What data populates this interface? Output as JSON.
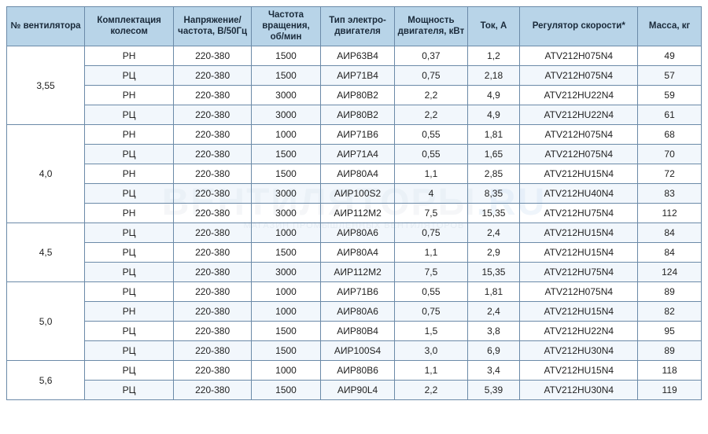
{
  "watermark": {
    "main_prefix": "ВЕНТИЛЯТОРЫ",
    "main_suffix": ".RU",
    "sub": "МАГАЗИН ПРОМЫШЛЕННЫХ ВЕНТИЛЯТОРОВ"
  },
  "colors": {
    "header_bg": "#b8d4e8",
    "border": "#6b8aa8",
    "row_alt": "#e8f1f9",
    "row_base": "#ffffff",
    "text": "#222222"
  },
  "font": {
    "family": "Arial",
    "header_size_pt": 9,
    "cell_size_pt": 9
  },
  "headers": [
    "№ вентилятора",
    "Комплектация колесом",
    "Напряжение/частота, В/50Гц",
    "Частота вращения, об/мин",
    "Тип электро-двигателя",
    "Мощность двигателя, кВт",
    "Ток, А",
    "Регулятор скорости*",
    "Масса, кг"
  ],
  "groups": [
    {
      "fan": "3,55",
      "rows": [
        [
          "РН",
          "220-380",
          "1500",
          "АИР63В4",
          "0,37",
          "1,2",
          "ATV212H075N4",
          "49"
        ],
        [
          "РЦ",
          "220-380",
          "1500",
          "АИР71В4",
          "0,75",
          "2,18",
          "ATV212H075N4",
          "57"
        ],
        [
          "РН",
          "220-380",
          "3000",
          "АИР80В2",
          "2,2",
          "4,9",
          "ATV212HU22N4",
          "59"
        ],
        [
          "РЦ",
          "220-380",
          "3000",
          "АИР80В2",
          "2,2",
          "4,9",
          "ATV212HU22N4",
          "61"
        ]
      ]
    },
    {
      "fan": "4,0",
      "rows": [
        [
          "РН",
          "220-380",
          "1000",
          "АИР71В6",
          "0,55",
          "1,81",
          "ATV212H075N4",
          "68"
        ],
        [
          "РЦ",
          "220-380",
          "1500",
          "АИР71А4",
          "0,55",
          "1,65",
          "ATV212H075N4",
          "70"
        ],
        [
          "РН",
          "220-380",
          "1500",
          "АИР80А4",
          "1,1",
          "2,85",
          "ATV212HU15N4",
          "72"
        ],
        [
          "РЦ",
          "220-380",
          "3000",
          "АИР100S2",
          "4",
          "8,35",
          "ATV212HU40N4",
          "83"
        ],
        [
          "РН",
          "220-380",
          "3000",
          "АИР112М2",
          "7,5",
          "15,35",
          "ATV212HU75N4",
          "112"
        ]
      ]
    },
    {
      "fan": "4,5",
      "rows": [
        [
          "РЦ",
          "220-380",
          "1000",
          "АИР80А6",
          "0,75",
          "2,4",
          "ATV212HU15N4",
          "84"
        ],
        [
          "РЦ",
          "220-380",
          "1500",
          "АИР80А4",
          "1,1",
          "2,9",
          "ATV212HU15N4",
          "84"
        ],
        [
          "РЦ",
          "220-380",
          "3000",
          "АИР112М2",
          "7,5",
          "15,35",
          "ATV212HU75N4",
          "124"
        ]
      ]
    },
    {
      "fan": "5,0",
      "rows": [
        [
          "РЦ",
          "220-380",
          "1000",
          "АИР71В6",
          "0,55",
          "1,81",
          "ATV212H075N4",
          "89"
        ],
        [
          "РН",
          "220-380",
          "1000",
          "АИР80А6",
          "0,75",
          "2,4",
          "ATV212HU15N4",
          "82"
        ],
        [
          "РЦ",
          "220-380",
          "1500",
          "АИР80В4",
          "1,5",
          "3,8",
          "ATV212HU22N4",
          "95"
        ],
        [
          "РЦ",
          "220-380",
          "1500",
          "АИР100S4",
          "3,0",
          "6,9",
          "ATV212HU30N4",
          "89"
        ]
      ]
    },
    {
      "fan": "5,6",
      "rows": [
        [
          "РЦ",
          "220-380",
          "1000",
          "АИР80В6",
          "1,1",
          "3,4",
          "ATV212HU15N4",
          "118"
        ],
        [
          "РЦ",
          "220-380",
          "1500",
          "АИР90L4",
          "2,2",
          "5,39",
          "ATV212HU30N4",
          "119"
        ]
      ]
    }
  ]
}
